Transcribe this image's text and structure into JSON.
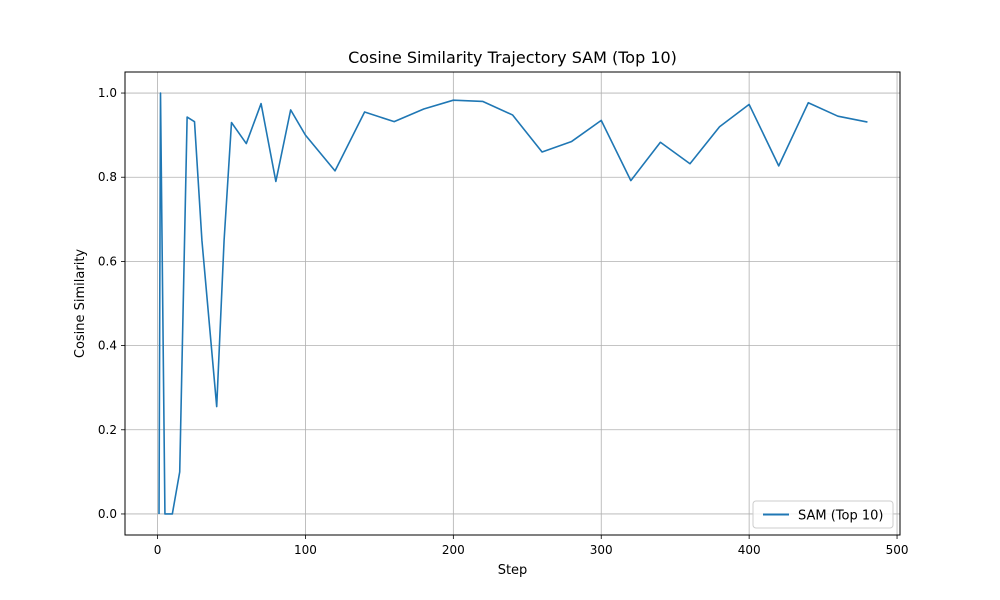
{
  "chart_data": {
    "type": "line",
    "title": "Cosine Similarity Trajectory SAM (Top 10)",
    "xlabel": "Step",
    "ylabel": "Cosine Similarity",
    "xlim": [
      -22,
      502
    ],
    "ylim": [
      -0.05,
      1.05
    ],
    "xticks": [
      0,
      100,
      200,
      300,
      400,
      500
    ],
    "yticks": [
      0.0,
      0.2,
      0.4,
      0.6,
      0.8,
      1.0
    ],
    "xtick_labels": [
      "0",
      "100",
      "200",
      "300",
      "400",
      "500"
    ],
    "ytick_labels": [
      "0.0",
      "0.2",
      "0.4",
      "0.6",
      "0.8",
      "1.0"
    ],
    "grid": true,
    "legend_position": "lower-right",
    "series": [
      {
        "name": "SAM (Top 10)",
        "color": "#1f77b4",
        "x": [
          1,
          2,
          5,
          10,
          15,
          20,
          25,
          30,
          40,
          45,
          50,
          60,
          70,
          80,
          90,
          100,
          120,
          140,
          160,
          180,
          200,
          220,
          240,
          260,
          280,
          300,
          320,
          340,
          360,
          380,
          400,
          420,
          440,
          460,
          480
        ],
        "y": [
          0.0,
          1.0,
          0.0,
          0.0,
          0.1,
          0.943,
          0.932,
          0.65,
          0.255,
          0.65,
          0.93,
          0.88,
          0.975,
          0.79,
          0.96,
          0.9,
          0.815,
          0.955,
          0.932,
          0.962,
          0.983,
          0.98,
          0.948,
          0.86,
          0.885,
          0.935,
          0.792,
          0.883,
          0.832,
          0.92,
          0.973,
          0.827,
          0.977,
          0.945,
          0.931
        ]
      }
    ]
  }
}
